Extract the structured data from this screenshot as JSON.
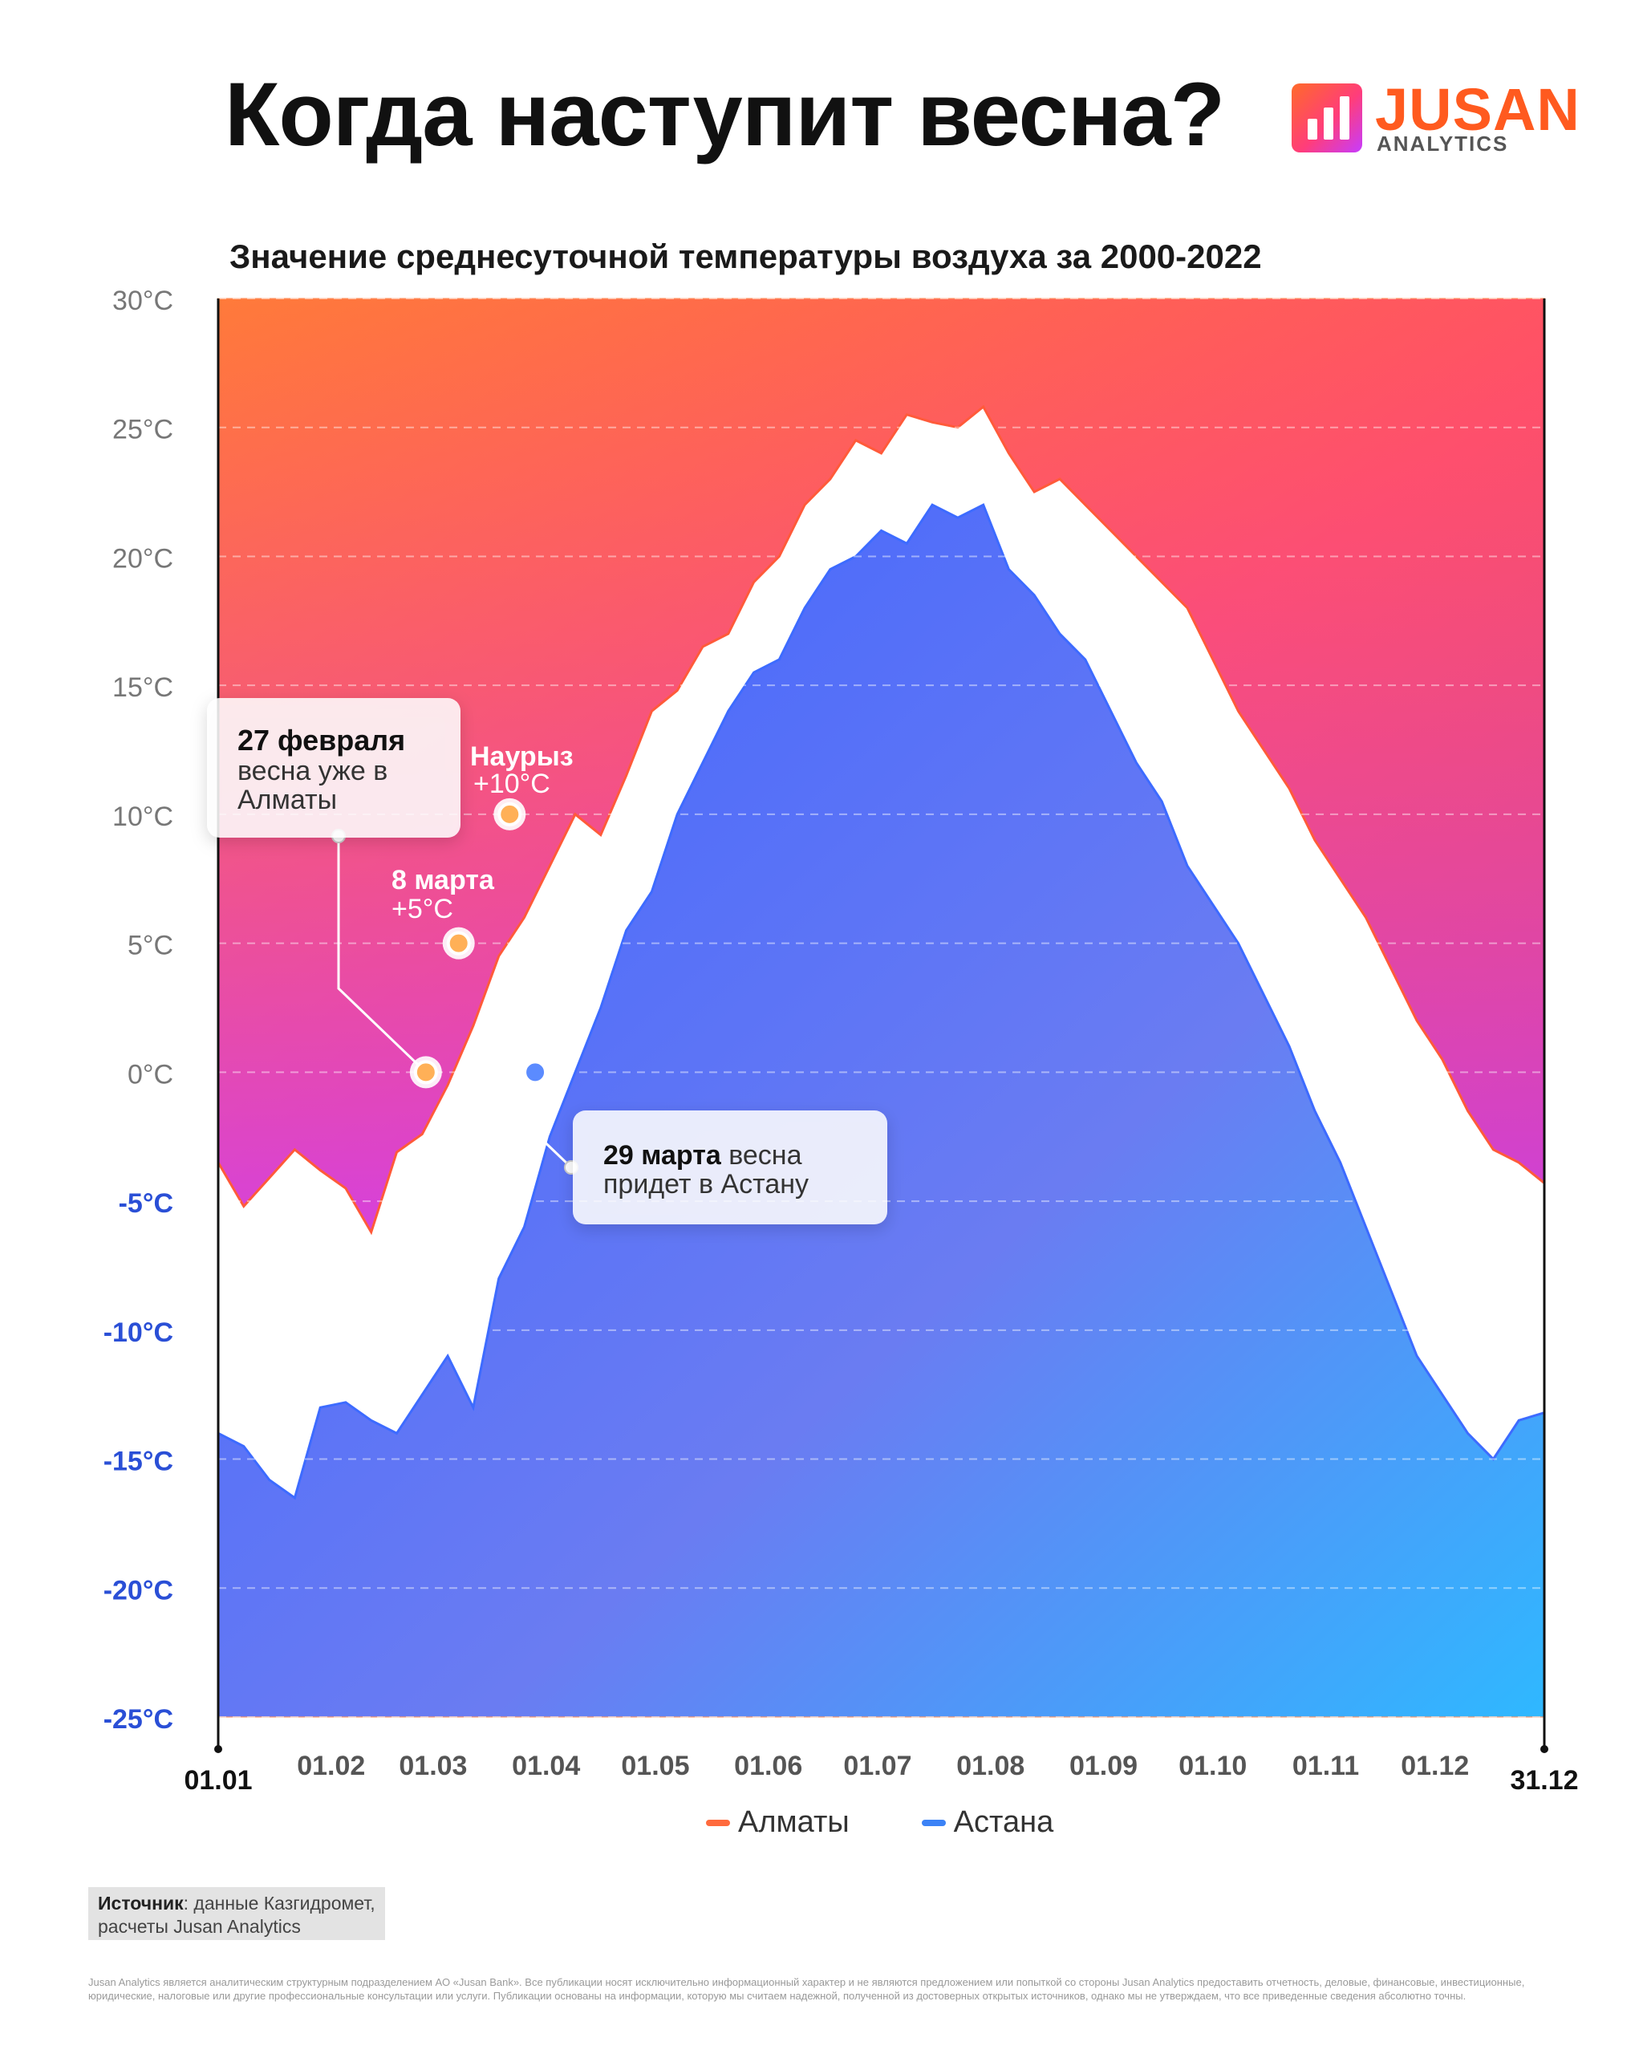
{
  "header": {
    "title": "Когда наступит весна?",
    "logo_text": "JUSAN",
    "logo_subtext": "ANALYTICS"
  },
  "colors": {
    "almaty": "#ff6a3d",
    "astana": "#3b82f6",
    "axis_negative": "#2a4fd6",
    "axis_positive": "#777777"
  },
  "chart_data": {
    "type": "area",
    "title": "Значение среднесуточной температуры воздуха за 2000-2022",
    "ylim": [
      -25,
      30
    ],
    "y_ticks": [
      "30°C",
      "25°C",
      "20°C",
      "15°C",
      "10°C",
      "5°C",
      "0°C",
      "-5°C",
      "-10°C",
      "-15°C",
      "-20°C",
      "-25°C"
    ],
    "x_ticks": [
      "01.01",
      "01.02",
      "01.03",
      "01.04",
      "01.05",
      "01.06",
      "01.07",
      "01.08",
      "01.09",
      "01.10",
      "01.11",
      "01.12",
      "31.12"
    ],
    "grid": true,
    "legend_position": "bottom",
    "series": [
      {
        "name": "Алматы",
        "x": [
          1,
          8,
          15,
          22,
          29,
          36,
          43,
          50,
          57,
          64,
          71,
          78,
          85,
          92,
          99,
          106,
          113,
          120,
          127,
          134,
          141,
          148,
          155,
          162,
          169,
          176,
          183,
          190,
          197,
          204,
          211,
          218,
          225,
          232,
          239,
          246,
          253,
          260,
          267,
          274,
          281,
          288,
          295,
          302,
          309,
          316,
          323,
          330,
          337,
          344,
          351,
          358,
          365
        ],
        "values": [
          -3.5,
          -5.2,
          -4.1,
          -3.0,
          -3.8,
          -4.5,
          -6.2,
          -3.1,
          -2.4,
          -0.5,
          1.8,
          4.5,
          6.0,
          8.0,
          10.0,
          9.2,
          11.5,
          14.0,
          14.8,
          16.5,
          17.0,
          19.0,
          20.0,
          22.0,
          23.0,
          24.5,
          24.0,
          25.5,
          25.2,
          25.0,
          25.8,
          24.0,
          22.5,
          23.0,
          22.0,
          21.0,
          20.0,
          19.0,
          18.0,
          16.0,
          14.0,
          12.5,
          11.0,
          9.0,
          7.5,
          6.0,
          4.0,
          2.0,
          0.5,
          -1.5,
          -3.0,
          -3.5,
          -4.3
        ]
      },
      {
        "name": "Астана",
        "x": [
          1,
          8,
          15,
          22,
          29,
          36,
          43,
          50,
          57,
          64,
          71,
          78,
          85,
          92,
          99,
          106,
          113,
          120,
          127,
          134,
          141,
          148,
          155,
          162,
          169,
          176,
          183,
          190,
          197,
          204,
          211,
          218,
          225,
          232,
          239,
          246,
          253,
          260,
          267,
          274,
          281,
          288,
          295,
          302,
          309,
          316,
          323,
          330,
          337,
          344,
          351,
          358,
          365
        ],
        "values": [
          -14.0,
          -14.5,
          -15.8,
          -16.5,
          -13.0,
          -12.8,
          -13.5,
          -14.0,
          -12.5,
          -11.0,
          -13.0,
          -8.0,
          -6.0,
          -2.5,
          0.0,
          2.5,
          5.5,
          7.0,
          10.0,
          12.0,
          14.0,
          15.5,
          16.0,
          18.0,
          19.5,
          20.0,
          21.0,
          20.5,
          22.0,
          21.5,
          22.0,
          19.5,
          18.5,
          17.0,
          16.0,
          14.0,
          12.0,
          10.5,
          8.0,
          6.5,
          5.0,
          3.0,
          1.0,
          -1.5,
          -3.5,
          -6.0,
          -8.5,
          -11.0,
          -12.5,
          -14.0,
          -15.0,
          -13.5,
          -13.2
        ]
      }
    ],
    "annotations": [
      {
        "title": "27 февраля",
        "text": "весна уже в Алматы",
        "x": 58,
        "y": 0
      },
      {
        "title": "8 марта",
        "text": "+5°C",
        "x": 67,
        "y": 5
      },
      {
        "title": "Наурыз",
        "text": "+10°C",
        "x": 81,
        "y": 10
      },
      {
        "title": "29 марта",
        "text": "весна придет в Астану",
        "x": 88,
        "y": 0
      }
    ]
  },
  "legend": {
    "almaty": "Алматы",
    "astana": "Астана"
  },
  "source": {
    "label": "Источник",
    "text": ": данные Казгидромет, расчеты Jusan Analytics"
  },
  "disclaimer": "Jusan Analytics является аналитическим структурным подразделением АО «Jusan Bank». Все публикации носят исключительно информационный характер и не являются предложением или попыткой со стороны Jusan Analytics предоставить отчетность, деловые, финансовые, инвестиционные, юридические, налоговые или другие профессиональные консультации или услуги. Публикации основаны на информации, которую мы считаем надежной, полученной из достоверных открытых источников, однако мы не утверждаем, что все приведенные сведения абсолютно точны."
}
